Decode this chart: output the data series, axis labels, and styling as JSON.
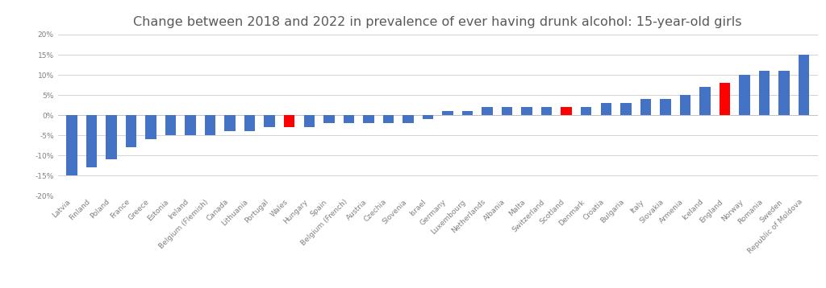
{
  "title": "Change between 2018 and 2022 in prevalence of ever having drunk alcohol: 15-year-old girls",
  "categories": [
    "Latvia",
    "Finland",
    "Poland",
    "France",
    "Greece",
    "Estonia",
    "Ireland",
    "Belgium (Flemish)",
    "Canada",
    "Lithuania",
    "Portugal",
    "Wales",
    "Hungary",
    "Spain",
    "Belgium (French)",
    "Austria",
    "Czechia",
    "Slovenia",
    "Israel",
    "Germany",
    "Luxembourg",
    "Netherlands",
    "Albania",
    "Malta",
    "Switzerland",
    "Scotland",
    "Denmark",
    "Croatia",
    "Bulgaria",
    "Italy",
    "Slovakia",
    "Armenia",
    "Iceland",
    "England",
    "Norway",
    "Romania",
    "Sweden",
    "Republic of Moldova"
  ],
  "values": [
    -15,
    -13,
    -11,
    -8,
    -6,
    -5,
    -5,
    -5,
    -4,
    -4,
    -3,
    -3,
    -3,
    -2,
    -2,
    -2,
    -2,
    -2,
    -1,
    1,
    1,
    2,
    2,
    2,
    2,
    2,
    2,
    3,
    3,
    4,
    4,
    5,
    7,
    8,
    10,
    11,
    11,
    15
  ],
  "bar_colors": [
    "#4472C4",
    "#4472C4",
    "#4472C4",
    "#4472C4",
    "#4472C4",
    "#4472C4",
    "#4472C4",
    "#4472C4",
    "#4472C4",
    "#4472C4",
    "#4472C4",
    "#FF0000",
    "#4472C4",
    "#4472C4",
    "#4472C4",
    "#4472C4",
    "#4472C4",
    "#4472C4",
    "#4472C4",
    "#4472C4",
    "#4472C4",
    "#4472C4",
    "#4472C4",
    "#4472C4",
    "#4472C4",
    "#FF0000",
    "#4472C4",
    "#4472C4",
    "#4472C4",
    "#4472C4",
    "#4472C4",
    "#4472C4",
    "#4472C4",
    "#FF0000",
    "#4472C4",
    "#4472C4",
    "#4472C4",
    "#4472C4"
  ],
  "ylim": [
    -20,
    20
  ],
  "yticks": [
    -20,
    -15,
    -10,
    -5,
    0,
    5,
    10,
    15,
    20
  ],
  "background_color": "#FFFFFF",
  "grid_color": "#D3D3D3",
  "title_fontsize": 11.5,
  "tick_fontsize": 6.5,
  "bar_width": 0.55
}
